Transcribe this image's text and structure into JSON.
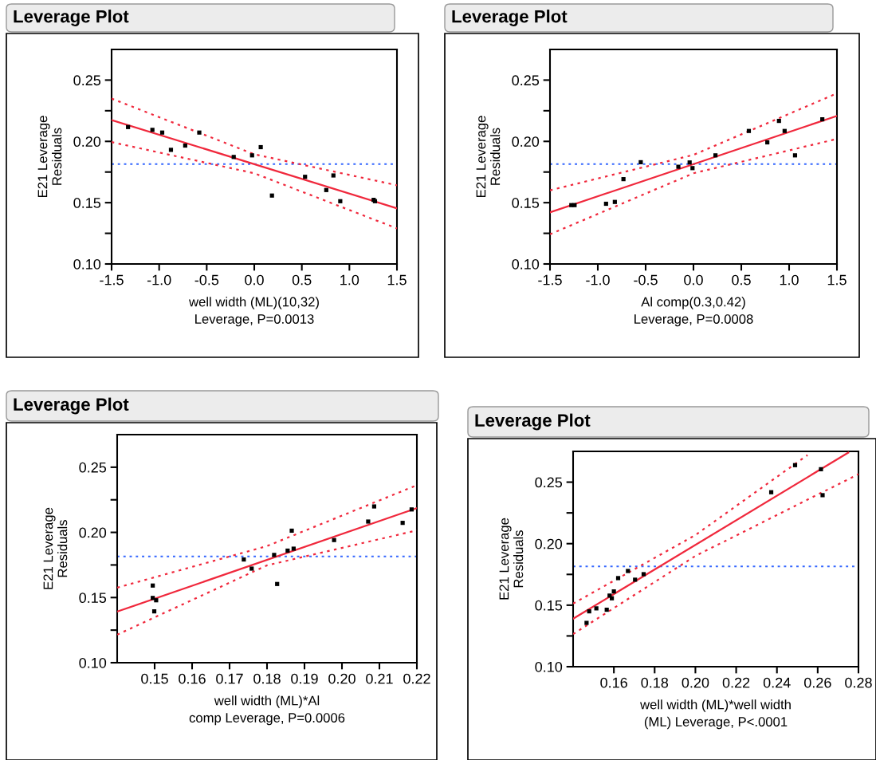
{
  "chart_data": [
    {
      "type": "scatter",
      "title": "Leverage Plot",
      "ylabel": "E21 Leverage\nResiduals",
      "xlabel": "well width (ML)(10,32)\nLeverage, P=0.0013",
      "xlim": [
        -1.5,
        1.5
      ],
      "xticks": [
        {
          "value": -1.5,
          "label": "-1.5"
        },
        {
          "value": -1,
          "label": "-1.0"
        },
        {
          "value": -0.5,
          "label": "-0.5"
        },
        {
          "value": 0,
          "label": "0.0"
        },
        {
          "value": 0.5,
          "label": "0.5"
        },
        {
          "value": 1,
          "label": "1.0"
        },
        {
          "value": 1.5,
          "label": "1.5"
        }
      ],
      "ylim": [
        0.1,
        0.275
      ],
      "yticks": [
        {
          "value": 0.1,
          "label": "0.10"
        },
        {
          "value": 0.125,
          "label": null
        },
        {
          "value": 0.15,
          "label": "0.15"
        },
        {
          "value": 0.175,
          "label": null
        },
        {
          "value": 0.2,
          "label": "0.20"
        },
        {
          "value": 0.225,
          "label": null
        },
        {
          "value": 0.25,
          "label": "0.25"
        }
      ],
      "ref_lines": [
        {
          "axis": "y",
          "value": 0.1815,
          "color": "#3366ff",
          "line_style": "dotted"
        }
      ],
      "series": [
        {
          "type": "scatter",
          "color": "#000000",
          "marker": "square",
          "x": [
            -1.327,
            -1.071,
            -0.968,
            -0.876,
            -0.726,
            -0.578,
            -0.216,
            -0.023,
            0.068,
            0.186,
            0.534,
            0.757,
            0.832,
            0.904,
            1.255,
            1.269
          ],
          "values": [
            0.2117,
            0.2094,
            0.2072,
            0.1931,
            0.1966,
            0.2072,
            0.1873,
            0.1886,
            0.1953,
            0.1558,
            0.1711,
            0.1603,
            0.1722,
            0.1512,
            0.1523,
            0.1512
          ]
        },
        {
          "type": "line",
          "color": "#f0283c",
          "line_style": "solid",
          "x": [
            -1.5,
            1.5
          ],
          "values": [
            0.2174,
            0.1454
          ]
        },
        {
          "type": "line",
          "color": "#f0283c",
          "line_style": "dotted",
          "x": [
            -1.5,
            0,
            1.5
          ],
          "values": [
            0.2349,
            0.1895,
            0.1642
          ]
        },
        {
          "type": "line",
          "color": "#f0283c",
          "line_style": "dotted",
          "x": [
            -1.5,
            0,
            1.5
          ],
          "values": [
            0.1994,
            0.174,
            0.129
          ]
        }
      ]
    },
    {
      "type": "scatter",
      "title": "Leverage Plot",
      "ylabel": "E21 Leverage\nResiduals",
      "xlabel": "Al comp(0.3,0.42)\nLeverage, P=0.0008",
      "xlim": [
        -1.5,
        1.5
      ],
      "xticks": [
        {
          "value": -1.5,
          "label": "-1.5"
        },
        {
          "value": -1,
          "label": "-1.0"
        },
        {
          "value": -0.5,
          "label": "-0.5"
        },
        {
          "value": 0,
          "label": "0.0"
        },
        {
          "value": 0.5,
          "label": "0.5"
        },
        {
          "value": 1,
          "label": "1.0"
        },
        {
          "value": 1.5,
          "label": "1.5"
        }
      ],
      "ylim": [
        0.1,
        0.275
      ],
      "yticks": [
        {
          "value": 0.1,
          "label": "0.10"
        },
        {
          "value": 0.125,
          "label": null
        },
        {
          "value": 0.15,
          "label": "0.15"
        },
        {
          "value": 0.175,
          "label": null
        },
        {
          "value": 0.2,
          "label": "0.20"
        },
        {
          "value": 0.225,
          "label": null
        },
        {
          "value": 0.25,
          "label": "0.25"
        }
      ],
      "ref_lines": [
        {
          "axis": "y",
          "value": 0.1815,
          "color": "#3366ff",
          "line_style": "dotted"
        }
      ],
      "series": [
        {
          "type": "scatter",
          "color": "#000000",
          "marker": "square",
          "x": [
            -1.277,
            -1.243,
            -0.914,
            -0.822,
            -0.732,
            -0.551,
            -0.158,
            -0.04,
            -0.01,
            0.23,
            0.579,
            0.772,
            0.894,
            0.953,
            1.062,
            1.347
          ],
          "values": [
            0.148,
            0.148,
            0.1491,
            0.1506,
            0.1692,
            0.183,
            0.1793,
            0.1828,
            0.1782,
            0.1886,
            0.2085,
            0.1992,
            0.2167,
            0.2085,
            0.1886,
            0.218
          ]
        },
        {
          "type": "line",
          "color": "#f0283c",
          "line_style": "solid",
          "x": [
            -1.5,
            1.5
          ],
          "values": [
            0.1421,
            0.2208
          ]
        },
        {
          "type": "line",
          "color": "#f0283c",
          "line_style": "dotted",
          "x": [
            -1.5,
            0,
            1.5
          ],
          "values": [
            0.1601,
            0.189,
            0.2392
          ]
        },
        {
          "type": "line",
          "color": "#f0283c",
          "line_style": "dotted",
          "x": [
            -1.5,
            0,
            1.5
          ],
          "values": [
            0.1242,
            0.174,
            0.202
          ]
        }
      ]
    },
    {
      "type": "scatter",
      "title": "Leverage Plot",
      "ylabel": "E21 Leverage\nResiduals",
      "xlabel": "well width (ML)*Al\ncomp Leverage, P=0.0006",
      "xlim": [
        0.14,
        0.22
      ],
      "xticks": [
        {
          "value": 0.15,
          "label": "0.15"
        },
        {
          "value": 0.16,
          "label": "0.16"
        },
        {
          "value": 0.17,
          "label": "0.17"
        },
        {
          "value": 0.18,
          "label": "0.18"
        },
        {
          "value": 0.19,
          "label": "0.19"
        },
        {
          "value": 0.2,
          "label": "0.20"
        },
        {
          "value": 0.21,
          "label": "0.21"
        },
        {
          "value": 0.22,
          "label": "0.22"
        }
      ],
      "ylim": [
        0.1,
        0.275
      ],
      "yticks": [
        {
          "value": 0.1,
          "label": "0.10"
        },
        {
          "value": 0.125,
          "label": null
        },
        {
          "value": 0.15,
          "label": "0.15"
        },
        {
          "value": 0.175,
          "label": null
        },
        {
          "value": 0.2,
          "label": "0.20"
        },
        {
          "value": 0.225,
          "label": null
        },
        {
          "value": 0.25,
          "label": "0.25"
        }
      ],
      "ref_lines": [
        {
          "axis": "y",
          "value": 0.1815,
          "color": "#3366ff",
          "line_style": "dotted"
        }
      ],
      "series": [
        {
          "type": "scatter",
          "color": "#000000",
          "marker": "square",
          "x": [
            0.1495,
            0.1495,
            0.1504,
            0.1499,
            0.1738,
            0.1759,
            0.1819,
            0.1827,
            0.1855,
            0.1866,
            0.1871,
            0.1979,
            0.207,
            0.2086,
            0.2162,
            0.2186
          ],
          "values": [
            0.1592,
            0.1497,
            0.1479,
            0.1394,
            0.1792,
            0.1722,
            0.1827,
            0.1604,
            0.186,
            0.2013,
            0.1875,
            0.1941,
            0.2083,
            0.2199,
            0.2073,
            0.2176
          ]
        },
        {
          "type": "line",
          "color": "#f0283c",
          "line_style": "solid",
          "x": [
            0.14,
            0.22
          ],
          "values": [
            0.1392,
            0.2186
          ]
        },
        {
          "type": "line",
          "color": "#f0283c",
          "line_style": "dotted",
          "x": [
            0.14,
            0.18,
            0.22
          ],
          "values": [
            0.1576,
            0.1895,
            0.2362
          ]
        },
        {
          "type": "line",
          "color": "#f0283c",
          "line_style": "dotted",
          "x": [
            0.14,
            0.18,
            0.22
          ],
          "values": [
            0.1215,
            0.1747,
            0.2015
          ]
        }
      ]
    },
    {
      "type": "scatter",
      "title": "Leverage Plot",
      "ylabel": "E21 Leverage\nResiduals",
      "xlabel": "well width (ML)*well width\n(ML) Leverage, P<.0001",
      "xlim": [
        0.14,
        0.28
      ],
      "xticks": [
        {
          "value": 0.16,
          "label": "0.16"
        },
        {
          "value": 0.18,
          "label": "0.18"
        },
        {
          "value": 0.2,
          "label": "0.20"
        },
        {
          "value": 0.22,
          "label": "0.22"
        },
        {
          "value": 0.24,
          "label": "0.24"
        },
        {
          "value": 0.26,
          "label": "0.26"
        },
        {
          "value": 0.28,
          "label": "0.28"
        }
      ],
      "ylim": [
        0.1,
        0.275
      ],
      "yticks": [
        {
          "value": 0.1,
          "label": "0.10"
        },
        {
          "value": 0.125,
          "label": null
        },
        {
          "value": 0.15,
          "label": "0.15"
        },
        {
          "value": 0.175,
          "label": null
        },
        {
          "value": 0.2,
          "label": "0.20"
        },
        {
          "value": 0.225,
          "label": null
        },
        {
          "value": 0.25,
          "label": "0.25"
        }
      ],
      "ref_lines": [
        {
          "axis": "y",
          "value": 0.1815,
          "color": "#3366ff",
          "line_style": "dotted"
        }
      ],
      "series": [
        {
          "type": "scatter",
          "color": "#000000",
          "marker": "square",
          "x": [
            0.1466,
            0.1479,
            0.1514,
            0.1565,
            0.1579,
            0.159,
            0.16,
            0.1621,
            0.1669,
            0.1704,
            0.1746,
            0.2372,
            0.2489,
            0.2616,
            0.2624
          ],
          "values": [
            0.1356,
            0.145,
            0.1474,
            0.1463,
            0.1578,
            0.1556,
            0.1612,
            0.172,
            0.1778,
            0.1707,
            0.1752,
            0.2418,
            0.2638,
            0.2605,
            0.2394
          ]
        },
        {
          "type": "line",
          "color": "#f0283c",
          "line_style": "solid",
          "x": [
            0.14,
            0.275
          ],
          "values": [
            0.139,
            0.274
          ]
        },
        {
          "type": "line",
          "color": "#f0283c",
          "line_style": "dotted",
          "x": [
            0.14,
            0.2,
            0.255
          ],
          "values": [
            0.1513,
            0.207,
            0.272
          ]
        },
        {
          "type": "line",
          "color": "#f0283c",
          "line_style": "dotted",
          "x": [
            0.14,
            0.2,
            0.28
          ],
          "values": [
            0.1265,
            0.19,
            0.2565
          ]
        }
      ]
    }
  ]
}
